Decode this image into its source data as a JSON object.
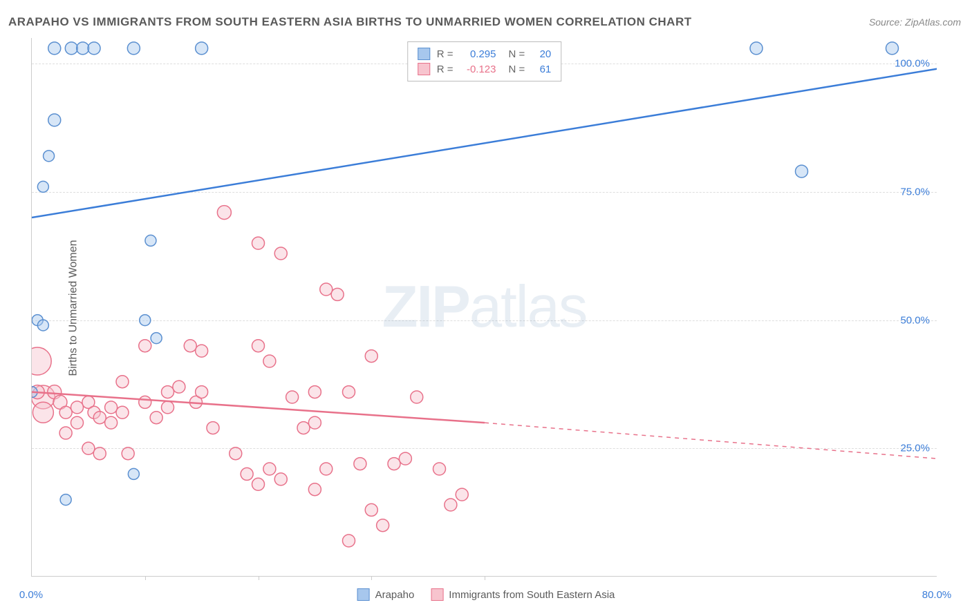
{
  "title": "ARAPAHO VS IMMIGRANTS FROM SOUTH EASTERN ASIA BIRTHS TO UNMARRIED WOMEN CORRELATION CHART",
  "source": "Source: ZipAtlas.com",
  "ylabel": "Births to Unmarried Women",
  "watermark_bold": "ZIP",
  "watermark_light": "atlas",
  "chart": {
    "type": "scatter",
    "xlim": [
      0,
      80
    ],
    "ylim": [
      0,
      105
    ],
    "ytick_values": [
      25,
      50,
      75,
      100
    ],
    "ytick_labels": [
      "25.0%",
      "50.0%",
      "75.0%",
      "100.0%"
    ],
    "xtick_values": [
      0,
      80
    ],
    "xtick_labels": [
      "0.0%",
      "80.0%"
    ],
    "xtick_marks": [
      10,
      20,
      30,
      40
    ],
    "grid_color": "#dddddd",
    "axis_label_color": "#3b7dd8",
    "background_color": "#ffffff",
    "series_a": {
      "name": "Arapaho",
      "R": "0.295",
      "N": "20",
      "fill": "#a7c7ed",
      "stroke": "#5a8fd0",
      "line_color": "#3b7dd8",
      "line_width": 2.5,
      "trend": {
        "x1": 0,
        "y1": 70,
        "x2": 80,
        "y2": 99
      },
      "marker_r_default": 9,
      "points": [
        {
          "x": 2,
          "y": 103,
          "r": 9
        },
        {
          "x": 3.5,
          "y": 103,
          "r": 9
        },
        {
          "x": 4.5,
          "y": 103,
          "r": 9
        },
        {
          "x": 5.5,
          "y": 103,
          "r": 9
        },
        {
          "x": 9,
          "y": 103,
          "r": 9
        },
        {
          "x": 15,
          "y": 103,
          "r": 9
        },
        {
          "x": 64,
          "y": 103,
          "r": 9
        },
        {
          "x": 76,
          "y": 103,
          "r": 9
        },
        {
          "x": 2,
          "y": 89,
          "r": 9
        },
        {
          "x": 1.5,
          "y": 82,
          "r": 8
        },
        {
          "x": 1,
          "y": 76,
          "r": 8
        },
        {
          "x": 68,
          "y": 79,
          "r": 9
        },
        {
          "x": 10.5,
          "y": 65.5,
          "r": 8
        },
        {
          "x": 0.5,
          "y": 50,
          "r": 8
        },
        {
          "x": 1,
          "y": 49,
          "r": 8
        },
        {
          "x": 10,
          "y": 50,
          "r": 8
        },
        {
          "x": 0,
          "y": 36,
          "r": 8
        },
        {
          "x": 11,
          "y": 46.5,
          "r": 8
        },
        {
          "x": 9,
          "y": 20,
          "r": 8
        },
        {
          "x": 3,
          "y": 15,
          "r": 8
        }
      ]
    },
    "series_b": {
      "name": "Immigrants from South Eastern Asia",
      "R": "-0.123",
      "N": "61",
      "fill": "#f7c4ce",
      "stroke": "#e8718a",
      "line_color": "#e8718a",
      "line_width": 2.5,
      "trend_solid": {
        "x1": 0,
        "y1": 36,
        "x2": 40,
        "y2": 30
      },
      "trend_dash": {
        "x1": 40,
        "y1": 30,
        "x2": 80,
        "y2": 23
      },
      "marker_r_default": 9,
      "points": [
        {
          "x": 0.5,
          "y": 42,
          "r": 20
        },
        {
          "x": 1,
          "y": 35,
          "r": 17
        },
        {
          "x": 1,
          "y": 32,
          "r": 15
        },
        {
          "x": 0.5,
          "y": 36,
          "r": 10
        },
        {
          "x": 2,
          "y": 36,
          "r": 10
        },
        {
          "x": 2.5,
          "y": 34,
          "r": 10
        },
        {
          "x": 3,
          "y": 32,
          "r": 9
        },
        {
          "x": 4,
          "y": 33,
          "r": 9
        },
        {
          "x": 4,
          "y": 30,
          "r": 9
        },
        {
          "x": 3,
          "y": 28,
          "r": 9
        },
        {
          "x": 5,
          "y": 34,
          "r": 9
        },
        {
          "x": 5.5,
          "y": 32,
          "r": 9
        },
        {
          "x": 6,
          "y": 31,
          "r": 9
        },
        {
          "x": 7,
          "y": 33,
          "r": 9
        },
        {
          "x": 7,
          "y": 30,
          "r": 9
        },
        {
          "x": 8,
          "y": 32,
          "r": 9
        },
        {
          "x": 8,
          "y": 38,
          "r": 9
        },
        {
          "x": 5,
          "y": 25,
          "r": 9
        },
        {
          "x": 6,
          "y": 24,
          "r": 9
        },
        {
          "x": 8.5,
          "y": 24,
          "r": 9
        },
        {
          "x": 10,
          "y": 34,
          "r": 9
        },
        {
          "x": 10,
          "y": 45,
          "r": 9
        },
        {
          "x": 11,
          "y": 31,
          "r": 9
        },
        {
          "x": 12,
          "y": 36,
          "r": 9
        },
        {
          "x": 12,
          "y": 33,
          "r": 9
        },
        {
          "x": 13,
          "y": 37,
          "r": 9
        },
        {
          "x": 14,
          "y": 45,
          "r": 9
        },
        {
          "x": 14.5,
          "y": 34,
          "r": 9
        },
        {
          "x": 15,
          "y": 44,
          "r": 9
        },
        {
          "x": 15,
          "y": 36,
          "r": 9
        },
        {
          "x": 16,
          "y": 29,
          "r": 9
        },
        {
          "x": 17,
          "y": 71,
          "r": 10
        },
        {
          "x": 18,
          "y": 24,
          "r": 9
        },
        {
          "x": 19,
          "y": 20,
          "r": 9
        },
        {
          "x": 20,
          "y": 18,
          "r": 9
        },
        {
          "x": 20,
          "y": 45,
          "r": 9
        },
        {
          "x": 20,
          "y": 65,
          "r": 9
        },
        {
          "x": 21,
          "y": 21,
          "r": 9
        },
        {
          "x": 21,
          "y": 42,
          "r": 9
        },
        {
          "x": 22,
          "y": 19,
          "r": 9
        },
        {
          "x": 22,
          "y": 63,
          "r": 9
        },
        {
          "x": 23,
          "y": 35,
          "r": 9
        },
        {
          "x": 24,
          "y": 29,
          "r": 9
        },
        {
          "x": 25,
          "y": 17,
          "r": 9
        },
        {
          "x": 25,
          "y": 36,
          "r": 9
        },
        {
          "x": 25,
          "y": 30,
          "r": 9
        },
        {
          "x": 26,
          "y": 56,
          "r": 9
        },
        {
          "x": 26,
          "y": 21,
          "r": 9
        },
        {
          "x": 27,
          "y": 55,
          "r": 9
        },
        {
          "x": 28,
          "y": 7,
          "r": 9
        },
        {
          "x": 28,
          "y": 36,
          "r": 9
        },
        {
          "x": 29,
          "y": 22,
          "r": 9
        },
        {
          "x": 30,
          "y": 13,
          "r": 9
        },
        {
          "x": 30,
          "y": 43,
          "r": 9
        },
        {
          "x": 31,
          "y": 10,
          "r": 9
        },
        {
          "x": 32,
          "y": 22,
          "r": 9
        },
        {
          "x": 33,
          "y": 23,
          "r": 9
        },
        {
          "x": 34,
          "y": 35,
          "r": 9
        },
        {
          "x": 36,
          "y": 21,
          "r": 9
        },
        {
          "x": 37,
          "y": 14,
          "r": 9
        },
        {
          "x": 38,
          "y": 16,
          "r": 9
        }
      ]
    }
  },
  "legend_top": {
    "R_label": "R =",
    "N_label": "N ="
  },
  "legend_bottom": {
    "a_label": "Arapaho",
    "b_label": "Immigrants from South Eastern Asia"
  }
}
